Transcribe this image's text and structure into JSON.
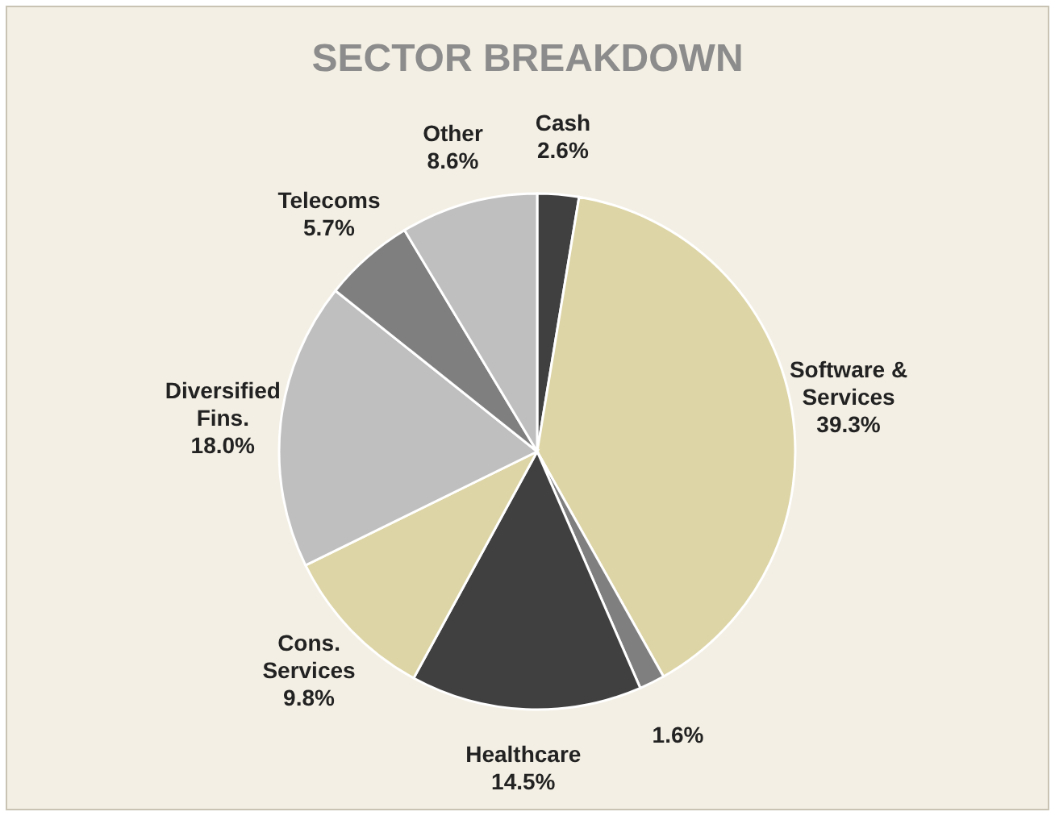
{
  "chart_data": {
    "type": "pie",
    "title": "SECTOR BREAKDOWN",
    "categories": [
      "Cash",
      "Software & Services",
      null,
      "Healthcare",
      "Cons. Services",
      "Diversified Fins.",
      "Telecoms",
      "Other"
    ],
    "values": [
      2.6,
      39.3,
      1.6,
      14.5,
      9.8,
      18.0,
      5.7,
      8.6
    ],
    "value_labels": [
      "2.6%",
      "39.3%",
      "1.6%",
      "14.5%",
      "9.8%",
      "18.0%",
      "5.7%",
      "8.6%"
    ],
    "colors": [
      "#404040",
      "#ddd5a6",
      "#7f7f7f",
      "#404040",
      "#ddd5a6",
      "#bfbfbf",
      "#7f7f7f",
      "#bfbfbf"
    ]
  }
}
